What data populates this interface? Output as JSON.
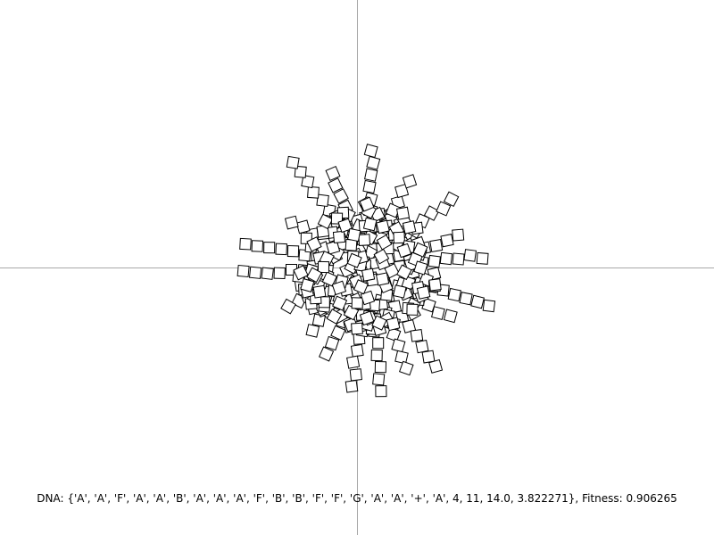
{
  "canvas": {
    "background": "#ffffff",
    "axis_color": "#a8a8a8",
    "square_stroke": "#000000",
    "square_fill": "#ffffff"
  },
  "status": {
    "dna_text": "DNA: {'A', 'A', 'F', 'A', 'A', 'B', 'A', 'A', 'A', 'F', 'B', 'B', 'F', 'F', 'G', 'A', 'A', '+', 'A', 4, 11, 14.0, 3.822271}",
    "separator": ", ",
    "fitness_label": "Fitness: ",
    "fitness_value": "0.906265"
  }
}
